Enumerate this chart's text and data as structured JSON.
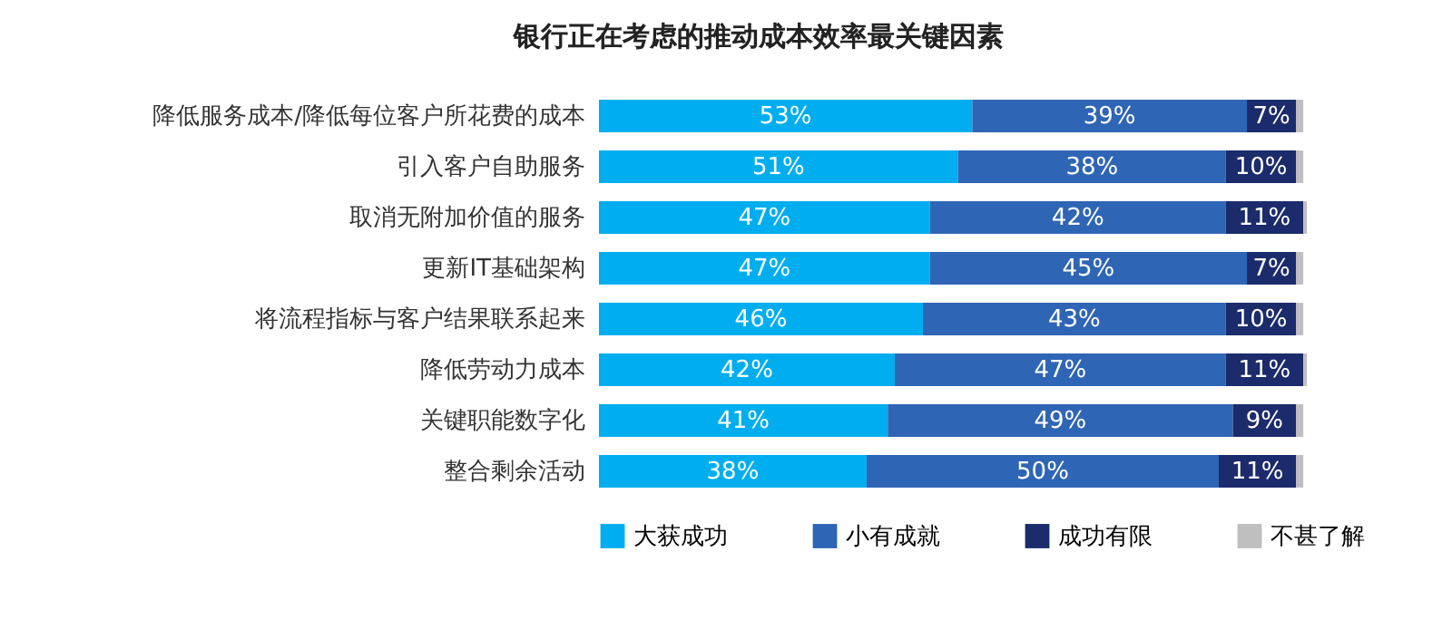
{
  "chart_data": {
    "type": "bar",
    "orientation": "horizontal",
    "stacked": true,
    "title": "银行正在考虑的推动成本效率最关键因素",
    "categories": [
      "降低服务成本/降低每位客户所花费的成本",
      "引入客户自助服务",
      "取消无附加价值的服务",
      "更新IT基础架构",
      "将流程指标与客户结果联系起来",
      "降低劳动力成本",
      "关键职能数字化",
      "整合剩余活动"
    ],
    "series": [
      {
        "name": "大获成功",
        "color": "#00aeef",
        "values": [
          53,
          51,
          47,
          47,
          46,
          42,
          41,
          38
        ],
        "value_labels": [
          "53%",
          "51%",
          "47%",
          "47%",
          "46%",
          "42%",
          "41%",
          "38%"
        ]
      },
      {
        "name": "小有成就",
        "color": "#2f65b5",
        "values": [
          39,
          38,
          42,
          45,
          43,
          47,
          49,
          50
        ],
        "value_labels": [
          "39%",
          "38%",
          "42%",
          "45%",
          "43%",
          "47%",
          "49%",
          "50%"
        ]
      },
      {
        "name": "成功有限",
        "color": "#1b2b6b",
        "values": [
          7,
          10,
          11,
          7,
          10,
          11,
          9,
          11
        ],
        "value_labels": [
          "7%",
          "10%",
          "11%",
          "7%",
          "10%",
          "11%",
          "9%",
          "11%"
        ]
      },
      {
        "name": "不甚了解",
        "color": "#bfbfbf",
        "values": [
          1,
          1,
          0.5,
          1,
          1,
          0.5,
          1,
          1
        ],
        "value_labels": [
          null,
          null,
          null,
          null,
          null,
          null,
          null,
          null
        ]
      }
    ],
    "legend": "bottom",
    "grid": false
  }
}
